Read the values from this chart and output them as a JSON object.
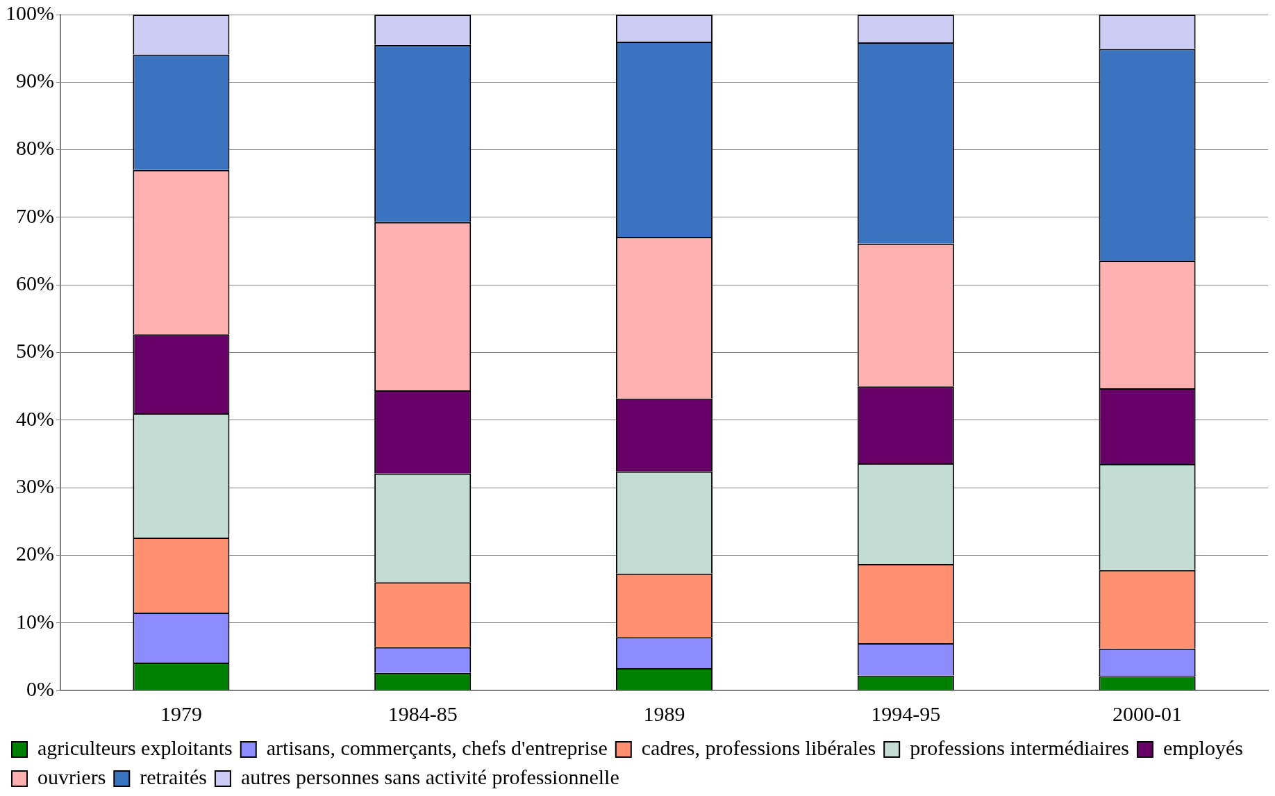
{
  "chart_data": {
    "type": "bar",
    "stacked": true,
    "categories": [
      "1979",
      "1984-85",
      "1989",
      "1994-95",
      "2000-01"
    ],
    "series": [
      {
        "name": "agriculteurs exploitants",
        "color": "#008000",
        "values": [
          4.1,
          2.6,
          3.3,
          2.2,
          2.1
        ]
      },
      {
        "name": "artisans, commerçants, chefs d'entreprise",
        "color": "#8c8cff",
        "values": [
          7.4,
          3.8,
          4.6,
          4.8,
          4.1
        ]
      },
      {
        "name": "cadres, professions libérales",
        "color": "#ff9070",
        "values": [
          11.1,
          9.6,
          9.4,
          11.7,
          11.6
        ]
      },
      {
        "name": "professions intermédiaires",
        "color": "#c4ddd4",
        "values": [
          18.4,
          16.1,
          15.1,
          14.9,
          15.7
        ]
      },
      {
        "name": "employés",
        "color": "#660066",
        "values": [
          11.7,
          12.3,
          10.8,
          11.4,
          11.2
        ]
      },
      {
        "name": "ouvriers",
        "color": "#ffb0b0",
        "values": [
          24.3,
          24.9,
          23.9,
          21.1,
          18.9
        ]
      },
      {
        "name": "retraités",
        "color": "#3a74c0",
        "values": [
          17.1,
          26.2,
          28.9,
          29.8,
          31.3
        ]
      },
      {
        "name": "autres personnes sans activité professionnelle",
        "color": "#ccccf4",
        "values": [
          5.9,
          4.5,
          4.0,
          4.1,
          5.1
        ]
      }
    ],
    "ylim": [
      0,
      100
    ],
    "yticks": [
      {
        "value": 0,
        "label": "0%"
      },
      {
        "value": 10,
        "label": "10%"
      },
      {
        "value": 20,
        "label": "20%"
      },
      {
        "value": 30,
        "label": "30%"
      },
      {
        "value": 40,
        "label": "40%"
      },
      {
        "value": 50,
        "label": "50%"
      },
      {
        "value": 60,
        "label": "60%"
      },
      {
        "value": 70,
        "label": "70%"
      },
      {
        "value": 80,
        "label": "80%"
      },
      {
        "value": 90,
        "label": "90%"
      },
      {
        "value": 100,
        "label": "100%"
      }
    ],
    "grid": "y",
    "legend": "bottom"
  }
}
